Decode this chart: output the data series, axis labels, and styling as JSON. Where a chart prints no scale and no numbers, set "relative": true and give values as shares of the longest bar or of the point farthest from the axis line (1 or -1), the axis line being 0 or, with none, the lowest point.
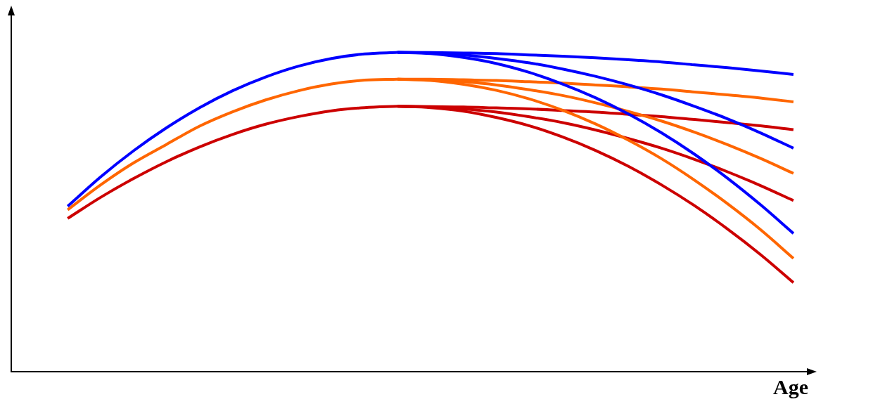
{
  "chart_data": {
    "type": "line",
    "xlabel": "Age",
    "relative": true,
    "marker": "none",
    "grid": false,
    "legend": false,
    "tick_labels": false,
    "categories": [
      null,
      null,
      null,
      null,
      null,
      null,
      null,
      null,
      null,
      null,
      null,
      null,
      null,
      null,
      null,
      null,
      null,
      null,
      null,
      null,
      null,
      null,
      null
    ],
    "series": [
      {
        "color": "#0000ff",
        "values": [
          0.518,
          0.61,
          0.692,
          0.764,
          0.827,
          0.88,
          0.923,
          0.957,
          0.981,
          0.995,
          1,
          null,
          null,
          null,
          null,
          null,
          null,
          null,
          null,
          null,
          null,
          null,
          null
        ]
      },
      {
        "color": "#ff6600",
        "values": [
          0.507,
          0.585,
          0.654,
          0.712,
          0.769,
          0.814,
          0.851,
          0.88,
          0.901,
          0.913,
          0.916,
          null,
          null,
          null,
          null,
          null,
          null,
          null,
          null,
          null,
          null,
          null,
          null
        ]
      },
      {
        "color": "#cc0000",
        "values": [
          0.48,
          0.546,
          0.605,
          0.658,
          0.704,
          0.743,
          0.775,
          0.799,
          0.817,
          0.827,
          0.831,
          null,
          null,
          null,
          null,
          null,
          null,
          null,
          null,
          null,
          null,
          null,
          null
        ]
      },
      {
        "color": "#0000ff",
        "values": [
          null,
          null,
          null,
          null,
          null,
          null,
          null,
          null,
          null,
          null,
          1,
          0.9995,
          0.998,
          0.996,
          0.992,
          0.988,
          0.983,
          0.977,
          0.97,
          0.961,
          0.952,
          0.942,
          0.931
        ]
      },
      {
        "color": "#0000ff",
        "values": [
          null,
          null,
          null,
          null,
          null,
          null,
          null,
          null,
          null,
          null,
          1,
          0.998,
          0.992,
          0.981,
          0.967,
          0.948,
          0.925,
          0.898,
          0.867,
          0.831,
          0.792,
          0.748,
          0.7
        ]
      },
      {
        "color": "#0000ff",
        "values": [
          null,
          null,
          null,
          null,
          null,
          null,
          null,
          null,
          null,
          null,
          1,
          0.996,
          0.984,
          0.965,
          0.937,
          0.901,
          0.858,
          0.807,
          0.748,
          0.681,
          0.606,
          0.523,
          0.433
        ]
      },
      {
        "color": "#ff6600",
        "values": [
          null,
          null,
          null,
          null,
          null,
          null,
          null,
          null,
          null,
          null,
          0.916,
          0.916,
          0.914,
          0.912,
          0.908,
          0.904,
          0.898,
          0.892,
          0.885,
          0.876,
          0.867,
          0.857,
          0.845
        ]
      },
      {
        "color": "#ff6600",
        "values": [
          null,
          null,
          null,
          null,
          null,
          null,
          null,
          null,
          null,
          null,
          0.916,
          0.914,
          0.908,
          0.898,
          0.883,
          0.865,
          0.842,
          0.815,
          0.785,
          0.75,
          0.711,
          0.668,
          0.621
        ]
      },
      {
        "color": "#ff6600",
        "values": [
          null,
          null,
          null,
          null,
          null,
          null,
          null,
          null,
          null,
          null,
          0.916,
          0.912,
          0.9,
          0.881,
          0.854,
          0.819,
          0.776,
          0.725,
          0.667,
          0.6,
          0.526,
          0.445,
          0.355
        ]
      },
      {
        "color": "#cc0000",
        "values": [
          null,
          null,
          null,
          null,
          null,
          null,
          null,
          null,
          null,
          null,
          0.831,
          0.83,
          0.829,
          0.826,
          0.823,
          0.818,
          0.813,
          0.806,
          0.799,
          0.79,
          0.78,
          0.77,
          0.758
        ]
      },
      {
        "color": "#cc0000",
        "values": [
          null,
          null,
          null,
          null,
          null,
          null,
          null,
          null,
          null,
          null,
          0.831,
          0.829,
          0.823,
          0.813,
          0.798,
          0.78,
          0.757,
          0.73,
          0.7,
          0.665,
          0.626,
          0.583,
          0.536
        ]
      },
      {
        "color": "#cc0000",
        "values": [
          null,
          null,
          null,
          null,
          null,
          null,
          null,
          null,
          null,
          null,
          0.831,
          0.827,
          0.816,
          0.796,
          0.77,
          0.735,
          0.693,
          0.643,
          0.585,
          0.52,
          0.447,
          0.367,
          0.279
        ]
      }
    ]
  }
}
